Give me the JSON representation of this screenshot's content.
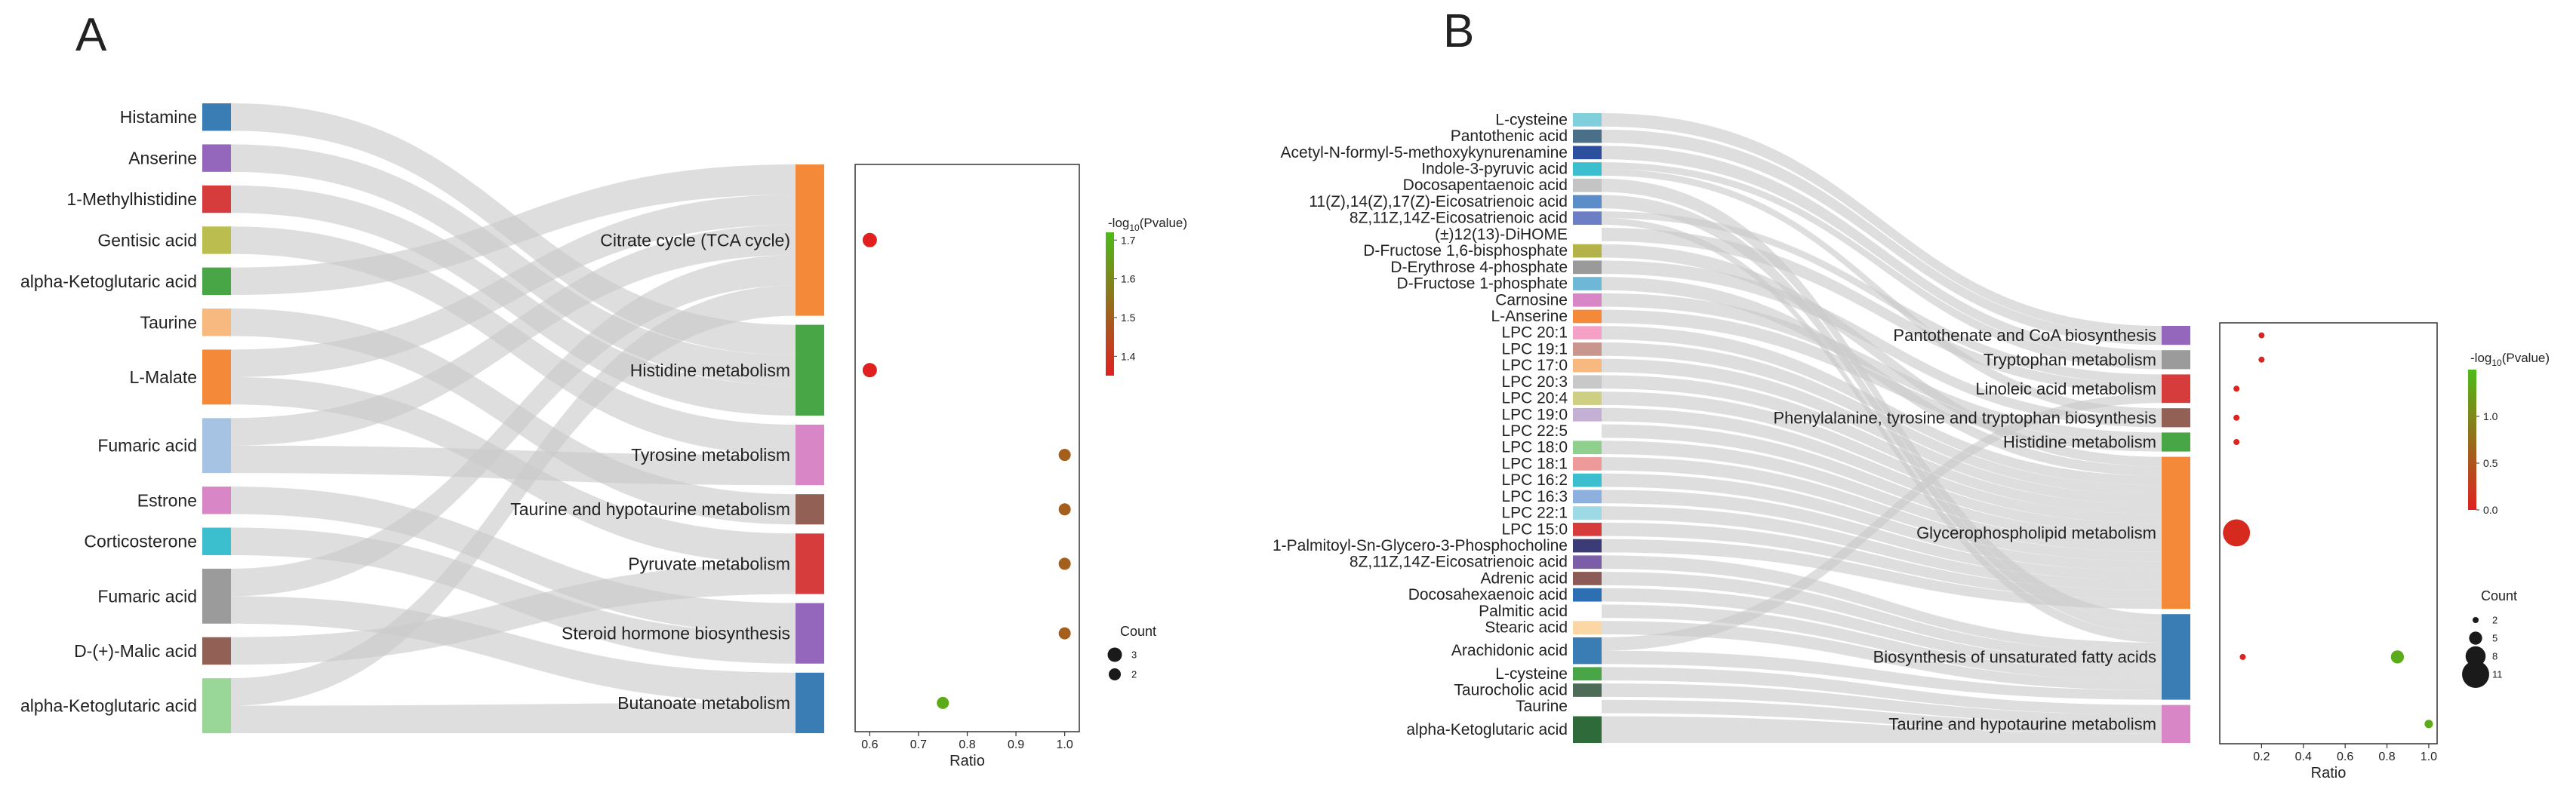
{
  "chart_data": [
    {
      "type": "sankey-dotplot",
      "panel": "A",
      "metabolites": [
        "Histamine",
        "Anserine",
        "1-Methylhistidine",
        "Gentisic acid",
        "alpha-Ketoglutaric acid",
        "Taurine",
        "L-Malate",
        "Fumaric acid",
        "Estrone",
        "Corticosterone",
        "Fumaric acid",
        "D-(+)-Malic acid",
        "alpha-Ketoglutaric acid"
      ],
      "metabolite_colors": [
        "#3a7cb4",
        "#9467bd",
        "#d63c3c",
        "#bcbd4f",
        "#49a646",
        "#f7b97f",
        "#f4893a",
        "#a7c3e4",
        "#d986c6",
        "#3bbfcf",
        "#9b9b9b",
        "#936055",
        "#98d797"
      ],
      "metabolite_weights": [
        1,
        1,
        1,
        1,
        1,
        1,
        2,
        2,
        1,
        1,
        2,
        1,
        2
      ],
      "pathways": [
        "Citrate cycle (TCA cycle)",
        "Histidine metabolism",
        "Tyrosine metabolism",
        "Taurine and hypotaurine metabolism",
        "Pyruvate metabolism",
        "Steroid hormone biosynthesis",
        "Butanoate metabolism"
      ],
      "pathway_colors": [
        "#f4893a",
        "#49a646",
        "#d986c6",
        "#936055",
        "#d63c3c",
        "#9467bd",
        "#3a7cb4"
      ],
      "links": [
        [
          0,
          1
        ],
        [
          1,
          1
        ],
        [
          2,
          1
        ],
        [
          3,
          2
        ],
        [
          4,
          0
        ],
        [
          5,
          3
        ],
        [
          6,
          0
        ],
        [
          6,
          4
        ],
        [
          7,
          0
        ],
        [
          7,
          2
        ],
        [
          8,
          5
        ],
        [
          9,
          5
        ],
        [
          10,
          0
        ],
        [
          10,
          6
        ],
        [
          11,
          4
        ],
        [
          12,
          0
        ],
        [
          12,
          6
        ]
      ],
      "dot_plot": {
        "xlabel": "Ratio",
        "xlim": [
          0.57,
          1.03
        ],
        "xticks": [
          "0.6",
          "0.7",
          "0.8",
          "0.9",
          "1.0"
        ],
        "points": [
          {
            "pathway": "Citrate cycle (TCA cycle)",
            "ratio": 0.6,
            "count": 3,
            "neglog10p": 1.35
          },
          {
            "pathway": "Histidine metabolism",
            "ratio": 0.6,
            "count": 3,
            "neglog10p": 1.35
          },
          {
            "pathway": "Tyrosine metabolism",
            "ratio": 1.0,
            "count": 2,
            "neglog10p": 1.5
          },
          {
            "pathway": "Taurine and hypotaurine metabolism",
            "ratio": 1.0,
            "count": 2,
            "neglog10p": 1.5
          },
          {
            "pathway": "Pyruvate metabolism",
            "ratio": 1.0,
            "count": 2,
            "neglog10p": 1.5
          },
          {
            "pathway": "Steroid hormone biosynthesis",
            "ratio": 1.0,
            "count": 2,
            "neglog10p": 1.5
          },
          {
            "pathway": "Butanoate metabolism",
            "ratio": 0.75,
            "count": 2,
            "neglog10p": 1.68
          }
        ],
        "colorbar": {
          "title": "-log",
          "sub": "10",
          "title_tail": "(Pvalue)",
          "min": 1.35,
          "max": 1.72,
          "ticks": [
            "1.7",
            "1.6",
            "1.5",
            "1.4"
          ],
          "tick_values": [
            1.7,
            1.6,
            1.5,
            1.4
          ],
          "low_color": "#e02020",
          "high_color": "#4cbb17"
        },
        "size_legend": {
          "title": "Count",
          "labels": [
            "3",
            "2"
          ],
          "values": [
            3,
            2
          ]
        }
      }
    },
    {
      "type": "sankey-dotplot",
      "panel": "B",
      "metabolites": [
        "L-cysteine",
        "Pantothenic acid",
        "Acetyl-N-formyl-5-methoxykynurenamine",
        "Indole-3-pyruvic acid",
        "Docosapentaenoic acid",
        "11(Z),14(Z),17(Z)-Eicosatrienoic acid",
        "8Z,11Z,14Z-Eicosatrienoic acid",
        "(±)12(13)-DiHOME",
        "D-Fructose 1,6-bisphosphate",
        "D-Erythrose 4-phosphate",
        "D-Fructose 1-phosphate",
        "Carnosine",
        "L-Anserine",
        "LPC 20:1",
        "LPC 19:1",
        "LPC 17:0",
        "LPC 20:3",
        "LPC 20:4",
        "LPC 19:0",
        "LPC 22:5",
        "LPC 18:0",
        "LPC 18:1",
        "LPC 16:2",
        "LPC 16:3",
        "LPC 22:1",
        "LPC 15:0",
        "1-Palmitoyl-Sn-Glycero-3-Phosphocholine",
        "8Z,11Z,14Z-Eicosatrienoic acid",
        "Adrenic acid",
        "Docosahexaenoic acid",
        "Palmitic acid",
        "Stearic acid",
        "Arachidonic acid",
        "L-cysteine",
        "Taurocholic acid",
        "Taurine",
        "alpha-Ketoglutaric acid"
      ],
      "metabolite_colors": [
        "#7fd0dc",
        "#4a6f88",
        "#2c4f9e",
        "#3bbfcf",
        "#c4c4c4",
        "#5b8ec9",
        "#6d7fc4",
        "#ffffff",
        "#b3b34a",
        "#9a9a9a",
        "#6fb7d6",
        "#d986c6",
        "#f4893a",
        "#f5a0c6",
        "#c9958f",
        "#f7b97f",
        "#c8c8c8",
        "#cfcf84",
        "#c5b0d5",
        "#ffffff",
        "#8fd08f",
        "#ef9a9a",
        "#3bbfcf",
        "#8db0de",
        "#9edae5",
        "#d63c3c",
        "#3b3b77",
        "#7b5ea7",
        "#8c5a57",
        "#2e6fb3",
        "#ffffff",
        "#fcd7a6",
        "#3a7cb4",
        "#49a646",
        "#4d6b57",
        "#ffffff",
        "#2f6b3a"
      ],
      "metabolite_weights": [
        1,
        1,
        1,
        1,
        1,
        1,
        1,
        1,
        1,
        1,
        1,
        1,
        1,
        1,
        1,
        1,
        1,
        1,
        1,
        1,
        1,
        1,
        1,
        1,
        1,
        1,
        1,
        1,
        1,
        1,
        1,
        1,
        2,
        1,
        1,
        1,
        2
      ],
      "pathways": [
        "Pantothenate and CoA biosynthesis",
        "Tryptophan metabolism",
        "Linoleic acid metabolism",
        "Phenylalanine, tyrosine and tryptophan biosynthesis",
        "Histidine metabolism",
        "Glycerophospholipid metabolism",
        "Biosynthesis of unsaturated fatty acids",
        "Taurine and hypotaurine metabolism"
      ],
      "pathway_colors": [
        "#9467bd",
        "#9b9b9b",
        "#d63c3c",
        "#936055",
        "#49a646",
        "#f4893a",
        "#3a7cb4",
        "#d986c6"
      ],
      "links": [
        [
          0,
          0
        ],
        [
          1,
          0
        ],
        [
          2,
          1
        ],
        [
          3,
          1
        ],
        [
          3,
          3
        ],
        [
          4,
          6
        ],
        [
          5,
          6
        ],
        [
          6,
          2
        ],
        [
          6,
          6
        ],
        [
          7,
          2
        ],
        [
          8,
          5
        ],
        [
          9,
          3
        ],
        [
          10,
          5
        ],
        [
          11,
          4
        ],
        [
          12,
          4
        ],
        [
          13,
          5
        ],
        [
          14,
          5
        ],
        [
          15,
          5
        ],
        [
          16,
          5
        ],
        [
          17,
          5
        ],
        [
          18,
          5
        ],
        [
          19,
          5
        ],
        [
          20,
          5
        ],
        [
          21,
          5
        ],
        [
          22,
          5
        ],
        [
          23,
          5
        ],
        [
          24,
          5
        ],
        [
          25,
          5
        ],
        [
          26,
          5
        ],
        [
          27,
          6
        ],
        [
          28,
          6
        ],
        [
          29,
          6
        ],
        [
          30,
          6
        ],
        [
          31,
          6
        ],
        [
          32,
          2
        ],
        [
          32,
          6
        ],
        [
          33,
          7
        ],
        [
          34,
          7
        ],
        [
          35,
          7
        ],
        [
          36,
          7
        ]
      ],
      "dot_plot": {
        "xlabel": "Ratio",
        "xlim": [
          0.0,
          1.04
        ],
        "xticks": [
          "0.2",
          "0.4",
          "0.6",
          "0.8",
          "1.0"
        ],
        "points": [
          {
            "pathway": "Pantothenate and CoA biosynthesis",
            "ratio": 0.2,
            "count": 2,
            "neglog10p": 0.05
          },
          {
            "pathway": "Tryptophan metabolism",
            "ratio": 0.2,
            "count": 2,
            "neglog10p": 0.05
          },
          {
            "pathway": "Linoleic acid metabolism",
            "ratio": 0.08,
            "count": 2,
            "neglog10p": 0.05
          },
          {
            "pathway": "Phenylalanine, tyrosine and tryptophan biosynthesis",
            "ratio": 0.08,
            "count": 2,
            "neglog10p": 0.05
          },
          {
            "pathway": "Histidine metabolism",
            "ratio": 0.08,
            "count": 2,
            "neglog10p": 0.05
          },
          {
            "pathway": "Glycerophospholipid metabolism",
            "ratio": 0.08,
            "count": 11,
            "neglog10p": 0.1
          },
          {
            "pathway": "Biosynthesis of unsaturated fatty acids",
            "ratio": 0.11,
            "count": 2,
            "neglog10p": 0.05
          },
          {
            "pathway": "Biosynthesis of unsaturated fatty acids",
            "ratio": 0.85,
            "count": 5,
            "neglog10p": 1.35
          },
          {
            "pathway": "Taurine and hypotaurine metabolism",
            "ratio": 1.0,
            "count": 3,
            "neglog10p": 1.35
          }
        ],
        "colorbar": {
          "title": "-log",
          "sub": "10",
          "title_tail": "(Pvalue)",
          "min": 0.0,
          "max": 1.5,
          "ticks": [
            "1.0",
            "0.5",
            "0.0"
          ],
          "tick_values": [
            1.0,
            0.5,
            0.0
          ],
          "low_color": "#e02020",
          "high_color": "#4cbb17"
        },
        "size_legend": {
          "title": "Count",
          "labels": [
            "2",
            "5",
            "8",
            "11"
          ],
          "values": [
            2,
            5,
            8,
            11
          ]
        }
      }
    }
  ],
  "labels": {
    "panel_a": "A",
    "panel_b": "B"
  }
}
